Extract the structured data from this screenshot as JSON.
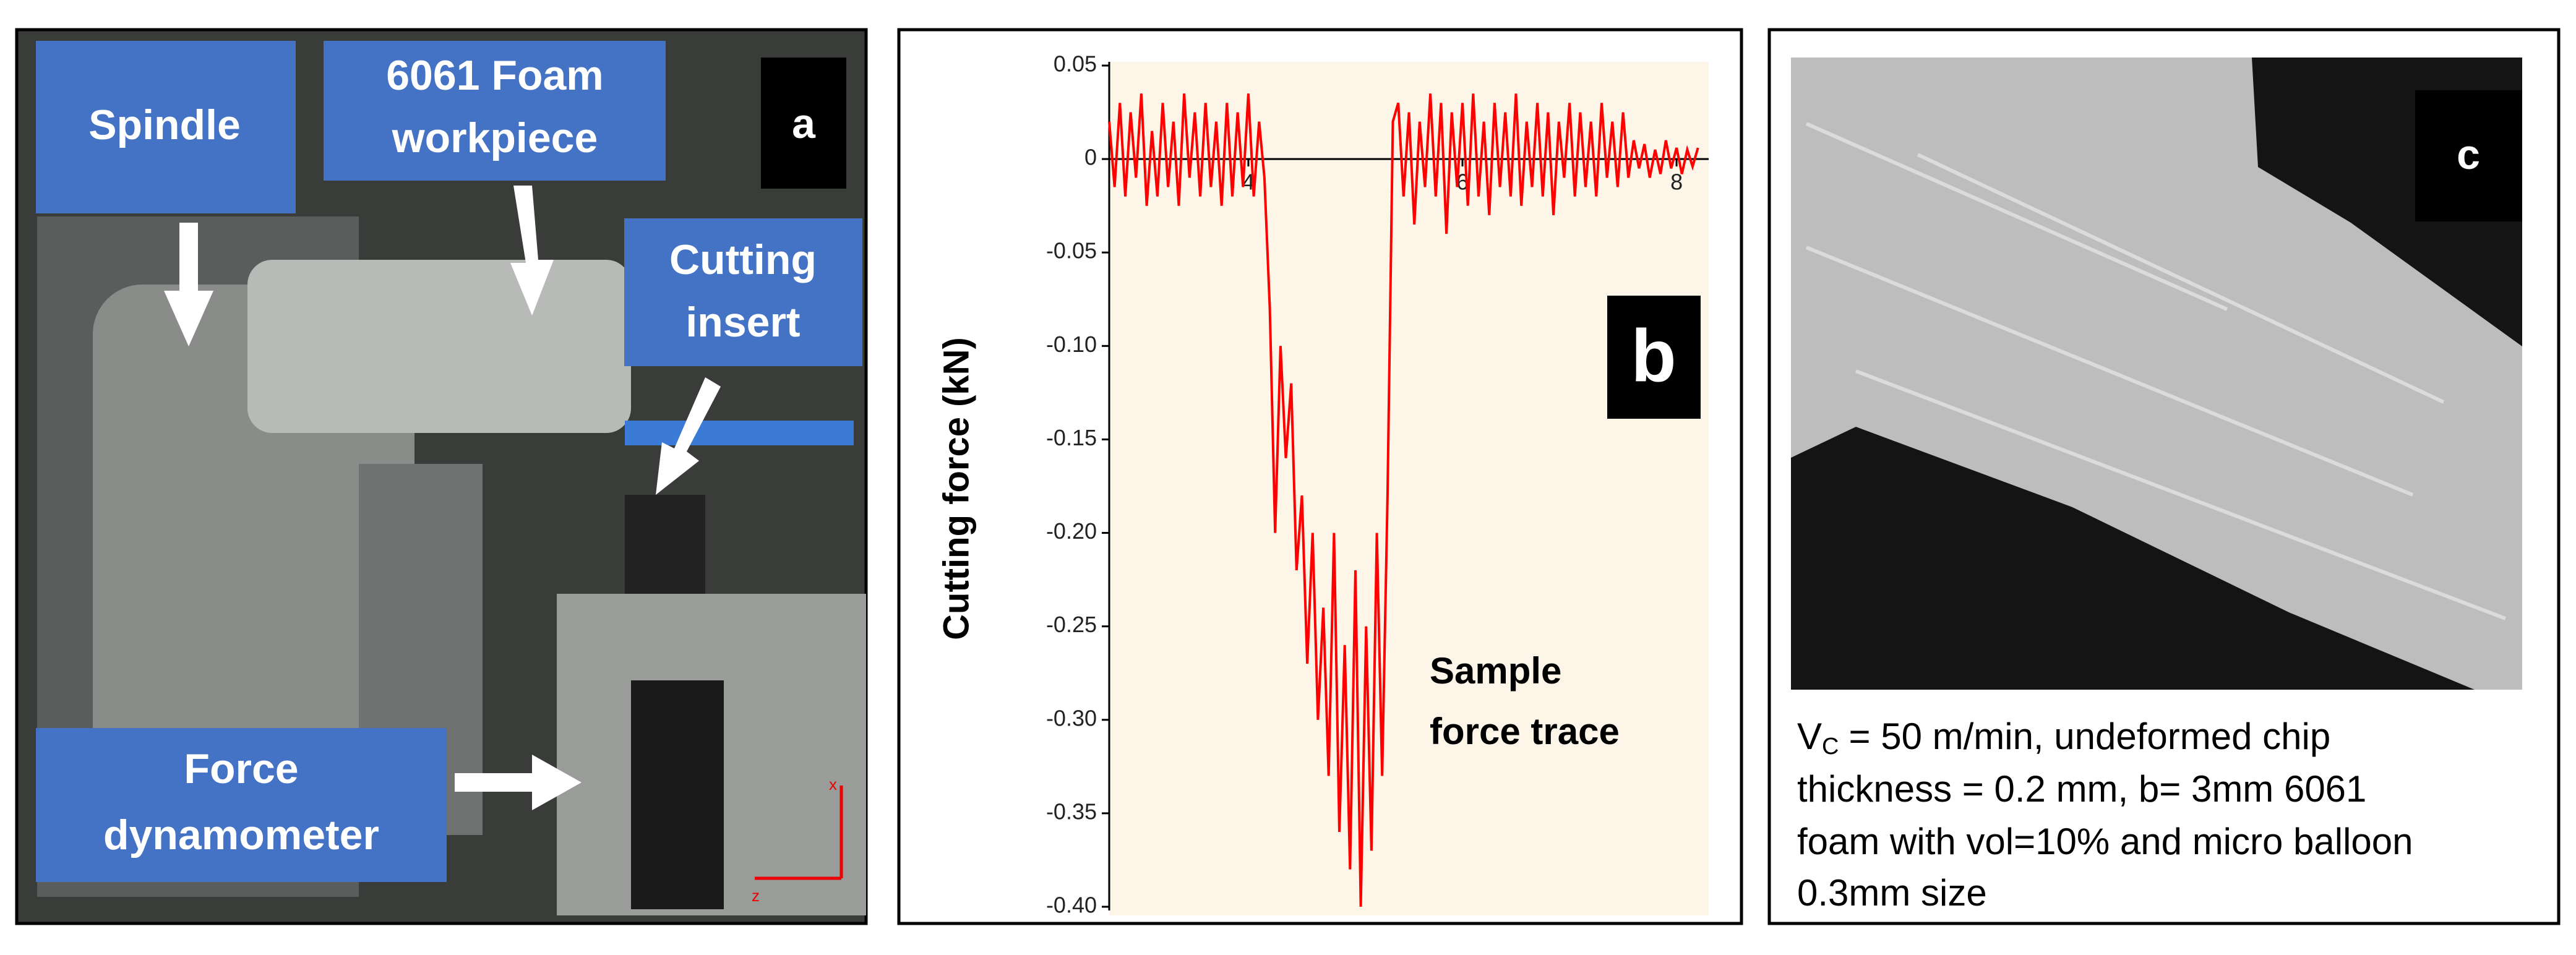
{
  "panel_a": {
    "letter": "a",
    "labels": {
      "spindle": "Spindle",
      "workpiece": [
        "6061 Foam",
        "workpiece"
      ],
      "insert": [
        "Cutting",
        "insert"
      ],
      "dynamometer": [
        "Force",
        "dynamometer"
      ]
    },
    "axes": {
      "x": "x",
      "z": "z"
    }
  },
  "panel_b": {
    "letter": "b",
    "annotation": [
      "Sample",
      "force trace"
    ]
  },
  "chart_data": {
    "type": "line",
    "ylabel": "Cutting force (kN)",
    "color": "#ff0000",
    "x": [
      2.7,
      2.75,
      2.8,
      2.85,
      2.9,
      2.95,
      3.0,
      3.05,
      3.1,
      3.15,
      3.2,
      3.25,
      3.3,
      3.35,
      3.4,
      3.45,
      3.5,
      3.55,
      3.6,
      3.65,
      3.7,
      3.75,
      3.8,
      3.85,
      3.9,
      3.95,
      4.0,
      4.05,
      4.1,
      4.15,
      4.2,
      4.25,
      4.3,
      4.35,
      4.4,
      4.45,
      4.5,
      4.55,
      4.6,
      4.65,
      4.7,
      4.75,
      4.8,
      4.85,
      4.9,
      4.95,
      5.0,
      5.05,
      5.1,
      5.15,
      5.2,
      5.25,
      5.3,
      5.35,
      5.4,
      5.45,
      5.5,
      5.55,
      5.6,
      5.65,
      5.7,
      5.75,
      5.8,
      5.85,
      5.9,
      5.95,
      6.0,
      6.05,
      6.1,
      6.15,
      6.2,
      6.25,
      6.3,
      6.35,
      6.4,
      6.45,
      6.5,
      6.55,
      6.6,
      6.65,
      6.7,
      6.75,
      6.8,
      6.85,
      6.9,
      6.95,
      7.0,
      7.05,
      7.1,
      7.15,
      7.2,
      7.25,
      7.3,
      7.35,
      7.4,
      7.45,
      7.5,
      7.55,
      7.6,
      7.65,
      7.7,
      7.75,
      7.8,
      7.85,
      7.9,
      7.95,
      8.0,
      8.05,
      8.1,
      8.15,
      8.2
    ],
    "values": [
      0.02,
      -0.015,
      0.03,
      -0.02,
      0.025,
      -0.01,
      0.035,
      -0.025,
      0.015,
      -0.02,
      0.03,
      -0.015,
      0.02,
      -0.025,
      0.035,
      -0.01,
      0.025,
      -0.02,
      0.03,
      -0.015,
      0.02,
      -0.025,
      0.03,
      -0.02,
      0.025,
      -0.015,
      0.035,
      -0.02,
      0.02,
      -0.01,
      -0.08,
      -0.2,
      -0.1,
      -0.16,
      -0.12,
      -0.22,
      -0.18,
      -0.27,
      -0.2,
      -0.3,
      -0.24,
      -0.33,
      -0.2,
      -0.36,
      -0.26,
      -0.38,
      -0.22,
      -0.4,
      -0.25,
      -0.37,
      -0.2,
      -0.33,
      -0.18,
      0.02,
      0.03,
      -0.02,
      0.025,
      -0.035,
      0.02,
      -0.015,
      0.035,
      -0.02,
      0.03,
      -0.04,
      0.025,
      -0.015,
      0.03,
      -0.025,
      0.035,
      -0.02,
      0.02,
      -0.03,
      0.03,
      -0.015,
      0.025,
      -0.02,
      0.035,
      -0.025,
      0.02,
      -0.015,
      0.03,
      -0.02,
      0.025,
      -0.03,
      0.02,
      -0.01,
      0.03,
      -0.02,
      0.025,
      -0.015,
      0.02,
      -0.02,
      0.03,
      -0.01,
      0.02,
      -0.015,
      0.025,
      -0.01,
      0.01,
      -0.005,
      0.008,
      -0.01,
      0.005,
      -0.008,
      0.01,
      -0.005,
      0.006,
      -0.008,
      0.005,
      -0.004,
      0.006
    ],
    "xlim": [
      2.7,
      8.3
    ],
    "xticks": [
      4,
      6,
      8
    ],
    "ylim": [
      -0.4,
      0.05
    ],
    "yticks": [
      0.05,
      0,
      -0.05,
      {
        "value": -0.1,
        "label": "-0.10"
      },
      -0.15,
      {
        "value": -0.2,
        "label": "-0.20"
      },
      -0.25,
      {
        "value": -0.3,
        "label": "-0.30"
      },
      -0.35,
      {
        "value": -0.4,
        "label": "-0.40"
      }
    ]
  },
  "panel_c": {
    "letter": "c",
    "caption": {
      "symbol": "V",
      "subscript": "C",
      "lines": [
        "= 50 m/min, undeformed chip",
        "thickness  = 0.2 mm, b= 3mm 6061",
        "foam with vol=10% and micro balloon",
        "0.3mm size"
      ]
    }
  }
}
